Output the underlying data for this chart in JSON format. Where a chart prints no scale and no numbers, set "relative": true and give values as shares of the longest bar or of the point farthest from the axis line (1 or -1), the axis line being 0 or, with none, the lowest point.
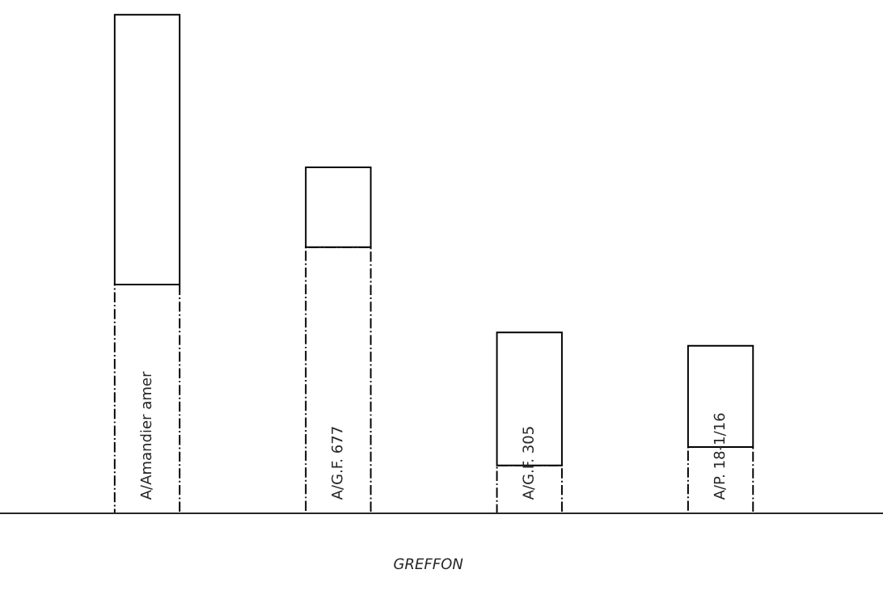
{
  "chart_data": {
    "type": "bar",
    "relative": true,
    "xlabel": "GREFFON",
    "stacked": true,
    "categories": [
      "A/Amandier amer",
      "A/G.F. 677",
      "A/G.F. 305",
      "A/P. 18-1/16"
    ],
    "series": [
      {
        "color": "#000000",
        "line_style": "dashdot",
        "values": [
          0.459,
          0.534,
          0.096,
          0.133
        ]
      },
      {
        "color": "#000000",
        "line_style": "solid",
        "values": [
          0.541,
          0.16,
          0.267,
          0.203
        ]
      }
    ],
    "legend": false
  }
}
